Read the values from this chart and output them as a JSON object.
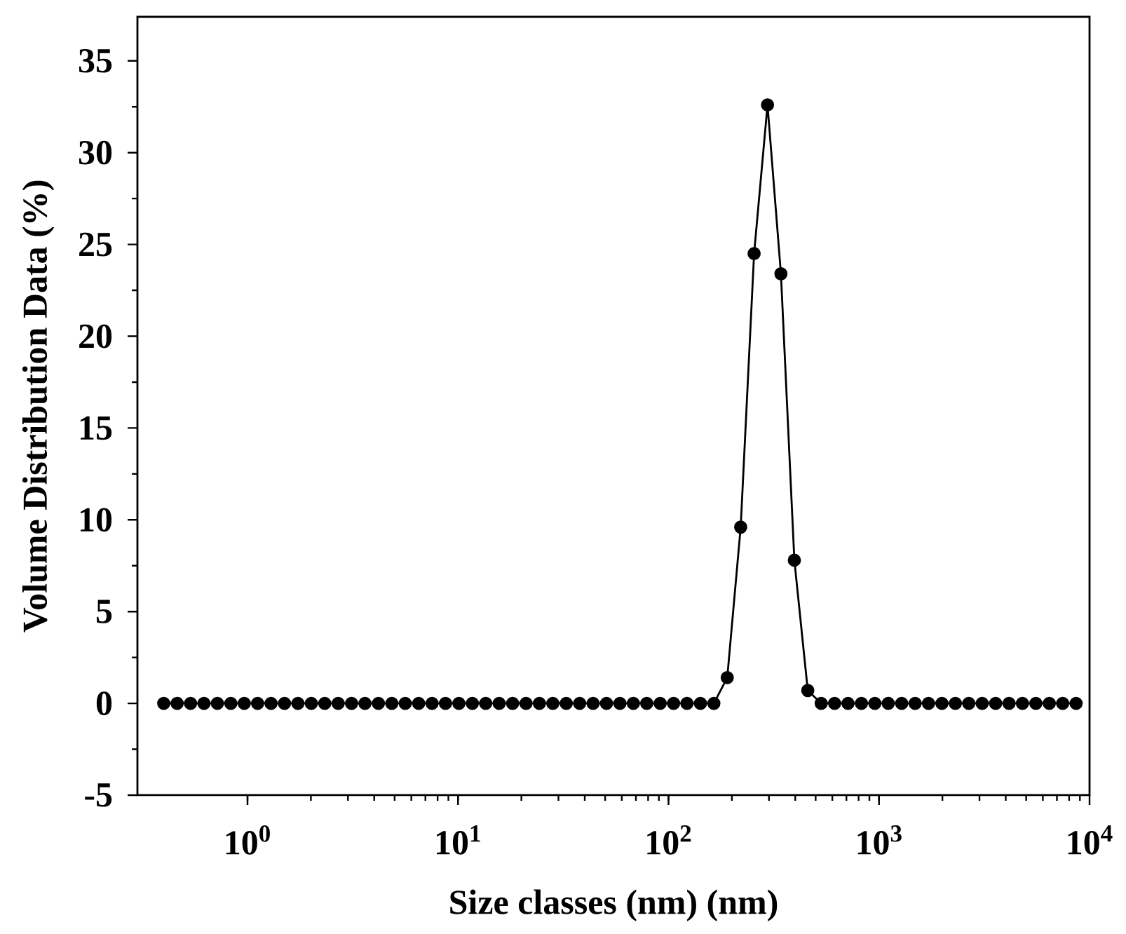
{
  "chart_data": {
    "type": "line",
    "xlabel": "Size classes (nm) (nm)",
    "ylabel": "Volume Distribution Data (%)",
    "log": "x",
    "marker": "circle",
    "line_style": "solid",
    "xlim": [
      0.3,
      10000
    ],
    "ylim": [
      -5,
      37.4
    ],
    "xticks": [
      {
        "value": 1,
        "label": "10$^{0}$"
      },
      {
        "value": 10,
        "label": "10$^{1}$"
      },
      {
        "value": 100,
        "label": "10$^{2}$"
      },
      {
        "value": 1000,
        "label": "10$^{3}$"
      },
      {
        "value": 10000,
        "label": "10$^{4}$"
      }
    ],
    "yticks": [
      -5,
      0,
      5,
      10,
      15,
      20,
      25,
      30,
      35
    ],
    "series": [
      {
        "color": "#000000",
        "x": [
          0.4,
          0.4632,
          0.5365,
          0.6213,
          0.7195,
          0.8332,
          0.9649,
          1.117,
          1.294,
          1.499,
          1.736,
          2.01,
          2.328,
          2.696,
          3.122,
          3.615,
          4.187,
          4.849,
          5.615,
          6.503,
          7.531,
          8.721,
          10.1,
          11.7,
          13.54,
          15.69,
          18.17,
          21.04,
          24.36,
          28.21,
          32.67,
          37.84,
          43.82,
          50.75,
          58.77,
          68.06,
          78.82,
          91.28,
          105.7,
          122.4,
          141.8,
          164.2,
          190.1,
          220.2,
          255,
          295.3,
          342,
          396.1,
          458.7,
          531.2,
          615.1,
          712.4,
          825,
          955.4,
          1106,
          1281,
          1484,
          1718,
          1990,
          2305,
          2669,
          3091,
          3580,
          4145,
          4801,
          5560,
          6439,
          7456,
          8635
        ],
        "values": [
          0,
          0,
          0,
          0,
          0,
          0,
          0,
          0,
          0,
          0,
          0,
          0,
          0,
          0,
          0,
          0,
          0,
          0,
          0,
          0,
          0,
          0,
          0,
          0,
          0,
          0,
          0,
          0,
          0,
          0,
          0,
          0,
          0,
          0,
          0,
          0,
          0,
          0,
          0,
          0,
          0,
          0,
          1.4,
          9.6,
          24.5,
          32.6,
          23.4,
          7.8,
          0.7,
          0,
          0,
          0,
          0,
          0,
          0,
          0,
          0,
          0,
          0,
          0,
          0,
          0,
          0,
          0,
          0,
          0,
          0,
          0,
          0
        ]
      }
    ]
  }
}
